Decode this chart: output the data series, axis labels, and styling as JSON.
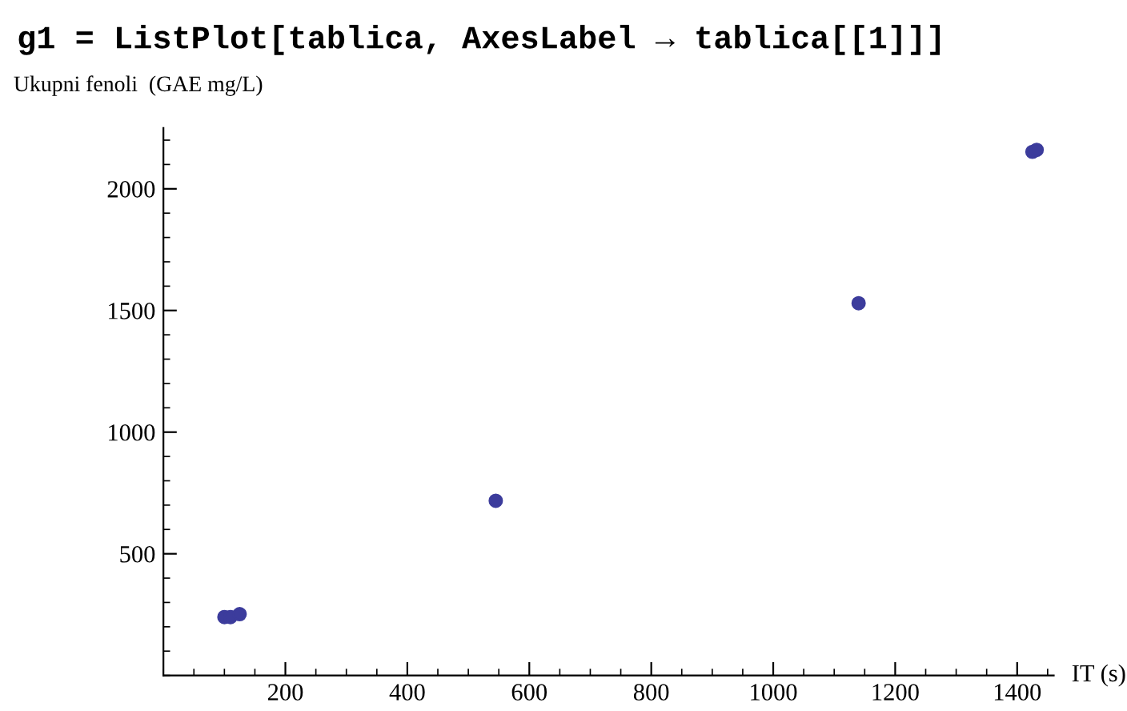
{
  "chart_data": {
    "type": "scatter",
    "title": "g1 = ListPlot[tablica, AxesLabel → tablica[[1]]]",
    "xlabel": "IT (s)",
    "ylabel": "Ukupni fenoli  (GAE mg/L)",
    "x": [
      100,
      110,
      125,
      545,
      1140,
      1425,
      1432
    ],
    "series": [
      {
        "color": "#3c3c9c",
        "values": [
          240,
          240,
          252,
          718,
          1530,
          2152,
          2160
        ]
      }
    ],
    "marker": "circle",
    "xlim": [
      0,
      1460
    ],
    "ylim": [
      0,
      2250
    ],
    "xticks": [
      200,
      400,
      600,
      800,
      1000,
      1200,
      1400
    ],
    "yticks": [
      500,
      1000,
      1500,
      2000
    ],
    "grid": false
  }
}
